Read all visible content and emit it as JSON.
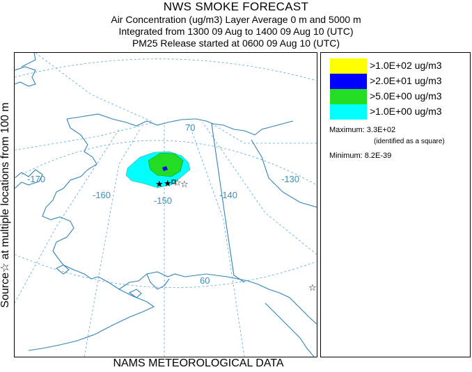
{
  "header": {
    "title": "NWS SMOKE FORECAST",
    "line1": "Air Concentration (ug/m3) Layer Average    0 m and  5000 m",
    "line2": "Integrated from 1300 09 Aug to 1400 09 Aug 10 (UTC)",
    "line3": "PM25 Release started at 0600 09 Aug 10 (UTC)"
  },
  "side_label": "Source☆ at multiple locations from 100 m",
  "footer": "NAMS METEOROLOGICAL DATA",
  "map": {
    "lon_labels": [
      "-170",
      "-160",
      "-150",
      "-140",
      "-130"
    ],
    "lat_labels": [
      "70",
      "60"
    ],
    "colors": {
      "coast": "#2f84b8",
      "grid": "#5aa6d0"
    }
  },
  "legend": {
    "items": [
      {
        "label": ">1.0E+02 ug/m3",
        "color": "#ffff00"
      },
      {
        "label": ">2.0E+01 ug/m3",
        "color": "#0000ff"
      },
      {
        "label": ">5.0E+00 ug/m3",
        "color": "#22dd22"
      },
      {
        "label": ">1.0E+00 ug/m3",
        "color": "#00ffff"
      }
    ],
    "maximum_label": "Maximum:",
    "maximum_value": "3.3E+02",
    "maximum_note": "(identified as a square)",
    "minimum_label": "Minimum:",
    "minimum_value": "8.2E-39"
  }
}
